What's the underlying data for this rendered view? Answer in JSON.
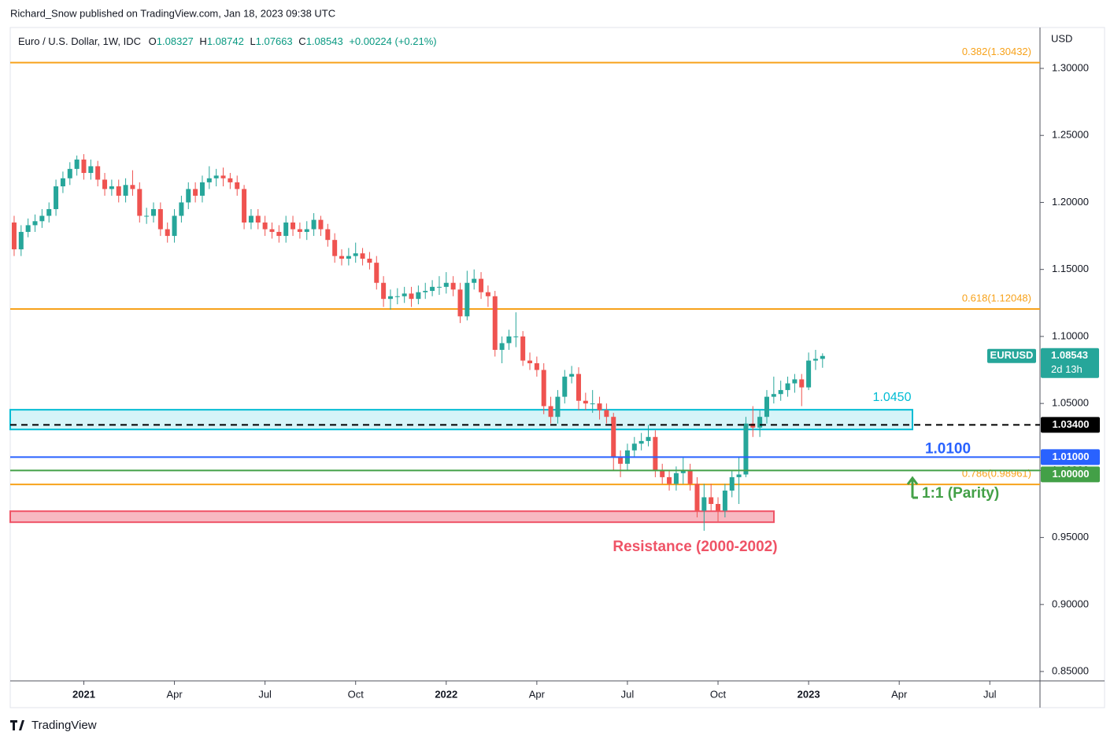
{
  "header": {
    "byline": "Richard_Snow published on TradingView.com, Jan 18, 2023 09:38 UTC",
    "brand": "TradingView"
  },
  "chart_data": {
    "type": "candlestick",
    "symbol": "Euro / U.S. Dollar, 1W, IDC",
    "ohlc_letters": [
      "O",
      "H",
      "L",
      "C"
    ],
    "change": "+0.00224 (+0.21%)",
    "currency": "USD",
    "ticker": "EURUSD",
    "countdown": "2d 13h",
    "up_color": "#26a69a",
    "down_color": "#ef5350",
    "xlim": [
      -0.56,
      147.2
    ],
    "ylim": [
      0.843,
      1.3305
    ],
    "xticks": [
      {
        "value": 10,
        "label": "2021"
      },
      {
        "value": 23,
        "label": "Apr"
      },
      {
        "value": 36,
        "label": "Jul"
      },
      {
        "value": 49,
        "label": "Oct"
      },
      {
        "value": 62,
        "label": "2022"
      },
      {
        "value": 75,
        "label": "Apr"
      },
      {
        "value": 88,
        "label": "Jul"
      },
      {
        "value": 101,
        "label": "Oct"
      },
      {
        "value": 114,
        "label": "2023"
      },
      {
        "value": 127,
        "label": "Apr"
      },
      {
        "value": 140,
        "label": "Jul"
      }
    ],
    "yticks": [
      {
        "value": 0.85,
        "label": "0.85000"
      },
      {
        "value": 0.9,
        "label": "0.90000"
      },
      {
        "value": 0.95,
        "label": "0.95000"
      },
      {
        "value": 1.0,
        "label": "1.00000"
      },
      {
        "value": 1.05,
        "label": "1.05000"
      },
      {
        "value": 1.1,
        "label": "1.10000"
      },
      {
        "value": 1.15,
        "label": "1.15000"
      },
      {
        "value": 1.2,
        "label": "1.20000"
      },
      {
        "value": 1.25,
        "label": "1.25000"
      },
      {
        "value": 1.3,
        "label": "1.30000"
      }
    ],
    "fib_levels": [
      {
        "value": 1.30432,
        "label": "0.382(1.30432)",
        "color": "#f7a21b"
      },
      {
        "value": 1.12048,
        "label": "0.618(1.12048)",
        "color": "#f7a21b"
      },
      {
        "value": 0.98961,
        "label": "0.786(0.98961)",
        "color": "#f7a21b"
      }
    ],
    "lines": [
      {
        "value": 1.034,
        "tag": "1.03400",
        "color": "#000000",
        "dashed": true
      },
      {
        "value": 1.01,
        "tag": "1.01000",
        "color": "#2962ff",
        "label": "1.0100"
      },
      {
        "value": 1.0,
        "tag": "1.00000",
        "color": "#43a047",
        "label": "1:1 (Parity)"
      }
    ],
    "zones": [
      {
        "label": "1.0450",
        "high": 1.0453,
        "low": 1.0306,
        "color": "#00bcd4",
        "fill": "#d6f4f8"
      },
      {
        "label": "Resistance (2000-2002)",
        "high": 0.9696,
        "low": 0.9614,
        "color": "#ef5366",
        "fill": "#f7b9c2"
      }
    ],
    "candles": [
      [
        1.185,
        1.19,
        1.16,
        1.165
      ],
      [
        1.165,
        1.183,
        1.16,
        1.178
      ],
      [
        1.178,
        1.188,
        1.174,
        1.183
      ],
      [
        1.183,
        1.191,
        1.178,
        1.186
      ],
      [
        1.186,
        1.195,
        1.181,
        1.19
      ],
      [
        1.19,
        1.2,
        1.185,
        1.195
      ],
      [
        1.195,
        1.217,
        1.19,
        1.212
      ],
      [
        1.212,
        1.223,
        1.207,
        1.218
      ],
      [
        1.218,
        1.23,
        1.213,
        1.225
      ],
      [
        1.225,
        1.235,
        1.22,
        1.232
      ],
      [
        1.232,
        1.236,
        1.217,
        1.222
      ],
      [
        1.222,
        1.232,
        1.217,
        1.227
      ],
      [
        1.227,
        1.231,
        1.212,
        1.217
      ],
      [
        1.217,
        1.222,
        1.205,
        1.21
      ],
      [
        1.21,
        1.217,
        1.205,
        1.212
      ],
      [
        1.212,
        1.217,
        1.2,
        1.205
      ],
      [
        1.205,
        1.218,
        1.2,
        1.213
      ],
      [
        1.213,
        1.224,
        1.205,
        1.21
      ],
      [
        1.21,
        1.215,
        1.185,
        1.19
      ],
      [
        1.19,
        1.196,
        1.184,
        1.19
      ],
      [
        1.19,
        1.2,
        1.185,
        1.195
      ],
      [
        1.195,
        1.2,
        1.175,
        1.18
      ],
      [
        1.18,
        1.185,
        1.17,
        1.175
      ],
      [
        1.175,
        1.195,
        1.17,
        1.19
      ],
      [
        1.19,
        1.205,
        1.185,
        1.2
      ],
      [
        1.2,
        1.215,
        1.195,
        1.21
      ],
      [
        1.21,
        1.215,
        1.2,
        1.205
      ],
      [
        1.205,
        1.22,
        1.2,
        1.215
      ],
      [
        1.215,
        1.227,
        1.21,
        1.218
      ],
      [
        1.218,
        1.225,
        1.212,
        1.22
      ],
      [
        1.22,
        1.226,
        1.212,
        1.218
      ],
      [
        1.218,
        1.222,
        1.21,
        1.215
      ],
      [
        1.215,
        1.22,
        1.205,
        1.21
      ],
      [
        1.21,
        1.213,
        1.18,
        1.185
      ],
      [
        1.185,
        1.195,
        1.18,
        1.19
      ],
      [
        1.19,
        1.195,
        1.18,
        1.185
      ],
      [
        1.185,
        1.19,
        1.175,
        1.18
      ],
      [
        1.18,
        1.185,
        1.173,
        1.178
      ],
      [
        1.178,
        1.183,
        1.17,
        1.175
      ],
      [
        1.175,
        1.19,
        1.17,
        1.185
      ],
      [
        1.185,
        1.19,
        1.175,
        1.18
      ],
      [
        1.18,
        1.185,
        1.173,
        1.178
      ],
      [
        1.178,
        1.186,
        1.172,
        1.18
      ],
      [
        1.18,
        1.192,
        1.175,
        1.187
      ],
      [
        1.187,
        1.19,
        1.175,
        1.18
      ],
      [
        1.18,
        1.184,
        1.167,
        1.172
      ],
      [
        1.172,
        1.177,
        1.155,
        1.16
      ],
      [
        1.16,
        1.165,
        1.153,
        1.158
      ],
      [
        1.158,
        1.166,
        1.153,
        1.16
      ],
      [
        1.16,
        1.17,
        1.155,
        1.162
      ],
      [
        1.162,
        1.166,
        1.153,
        1.158
      ],
      [
        1.158,
        1.163,
        1.15,
        1.155
      ],
      [
        1.155,
        1.16,
        1.135,
        1.14
      ],
      [
        1.14,
        1.145,
        1.122,
        1.128
      ],
      [
        1.128,
        1.135,
        1.12,
        1.13
      ],
      [
        1.13,
        1.136,
        1.124,
        1.13
      ],
      [
        1.13,
        1.137,
        1.125,
        1.132
      ],
      [
        1.132,
        1.137,
        1.122,
        1.128
      ],
      [
        1.128,
        1.138,
        1.124,
        1.133
      ],
      [
        1.133,
        1.14,
        1.128,
        1.134
      ],
      [
        1.134,
        1.142,
        1.13,
        1.137
      ],
      [
        1.137,
        1.145,
        1.131,
        1.137
      ],
      [
        1.137,
        1.148,
        1.132,
        1.14
      ],
      [
        1.14,
        1.145,
        1.13,
        1.135
      ],
      [
        1.135,
        1.14,
        1.11,
        1.115
      ],
      [
        1.115,
        1.149,
        1.112,
        1.14
      ],
      [
        1.14,
        1.15,
        1.135,
        1.143
      ],
      [
        1.143,
        1.148,
        1.128,
        1.133
      ],
      [
        1.133,
        1.138,
        1.122,
        1.13
      ],
      [
        1.13,
        1.134,
        1.085,
        1.09
      ],
      [
        1.09,
        1.1,
        1.08,
        1.095
      ],
      [
        1.095,
        1.105,
        1.09,
        1.1
      ],
      [
        1.1,
        1.118,
        1.092,
        1.1
      ],
      [
        1.1,
        1.104,
        1.078,
        1.082
      ],
      [
        1.082,
        1.088,
        1.075,
        1.08
      ],
      [
        1.08,
        1.085,
        1.07,
        1.075
      ],
      [
        1.075,
        1.08,
        1.042,
        1.048
      ],
      [
        1.048,
        1.055,
        1.035,
        1.04
      ],
      [
        1.04,
        1.06,
        1.035,
        1.055
      ],
      [
        1.055,
        1.075,
        1.05,
        1.07
      ],
      [
        1.07,
        1.078,
        1.065,
        1.072
      ],
      [
        1.072,
        1.077,
        1.045,
        1.052
      ],
      [
        1.052,
        1.058,
        1.045,
        1.05
      ],
      [
        1.05,
        1.06,
        1.043,
        1.05
      ],
      [
        1.05,
        1.055,
        1.038,
        1.045
      ],
      [
        1.045,
        1.05,
        1.035,
        1.04
      ],
      [
        1.04,
        1.043,
        1.0,
        1.01
      ],
      [
        1.01,
        1.015,
        0.995,
        1.005
      ],
      [
        1.005,
        1.02,
        1.0,
        1.015
      ],
      [
        1.015,
        1.025,
        1.01,
        1.02
      ],
      [
        1.02,
        1.028,
        1.015,
        1.022
      ],
      [
        1.022,
        1.034,
        1.018,
        1.025
      ],
      [
        1.025,
        1.03,
        0.995,
        1.0
      ],
      [
        1.0,
        1.005,
        0.99,
        0.995
      ],
      [
        0.995,
        1.0,
        0.985,
        0.99
      ],
      [
        0.99,
        1.003,
        0.985,
        0.998
      ],
      [
        0.998,
        1.01,
        0.99,
        1.0
      ],
      [
        1.0,
        1.005,
        0.985,
        0.99
      ],
      [
        0.99,
        0.995,
        0.965,
        0.97
      ],
      [
        0.97,
        0.99,
        0.955,
        0.98
      ],
      [
        0.98,
        0.99,
        0.97,
        0.975
      ],
      [
        0.975,
        0.98,
        0.962,
        0.97
      ],
      [
        0.97,
        0.99,
        0.965,
        0.985
      ],
      [
        0.985,
        1.0,
        0.98,
        0.995
      ],
      [
        0.995,
        1.01,
        0.975,
        0.997
      ],
      [
        0.997,
        1.04,
        0.995,
        1.035
      ],
      [
        1.035,
        1.048,
        1.025,
        1.032
      ],
      [
        1.032,
        1.045,
        1.025,
        1.04
      ],
      [
        1.04,
        1.06,
        1.035,
        1.055
      ],
      [
        1.055,
        1.07,
        1.05,
        1.057
      ],
      [
        1.057,
        1.067,
        1.052,
        1.06
      ],
      [
        1.06,
        1.07,
        1.055,
        1.065
      ],
      [
        1.065,
        1.072,
        1.058,
        1.068
      ],
      [
        1.068,
        1.072,
        1.048,
        1.062
      ],
      [
        1.062,
        1.088,
        1.06,
        1.082
      ],
      [
        1.082,
        1.09,
        1.075,
        1.08327
      ],
      [
        1.08327,
        1.08742,
        1.07663,
        1.08543
      ]
    ]
  }
}
